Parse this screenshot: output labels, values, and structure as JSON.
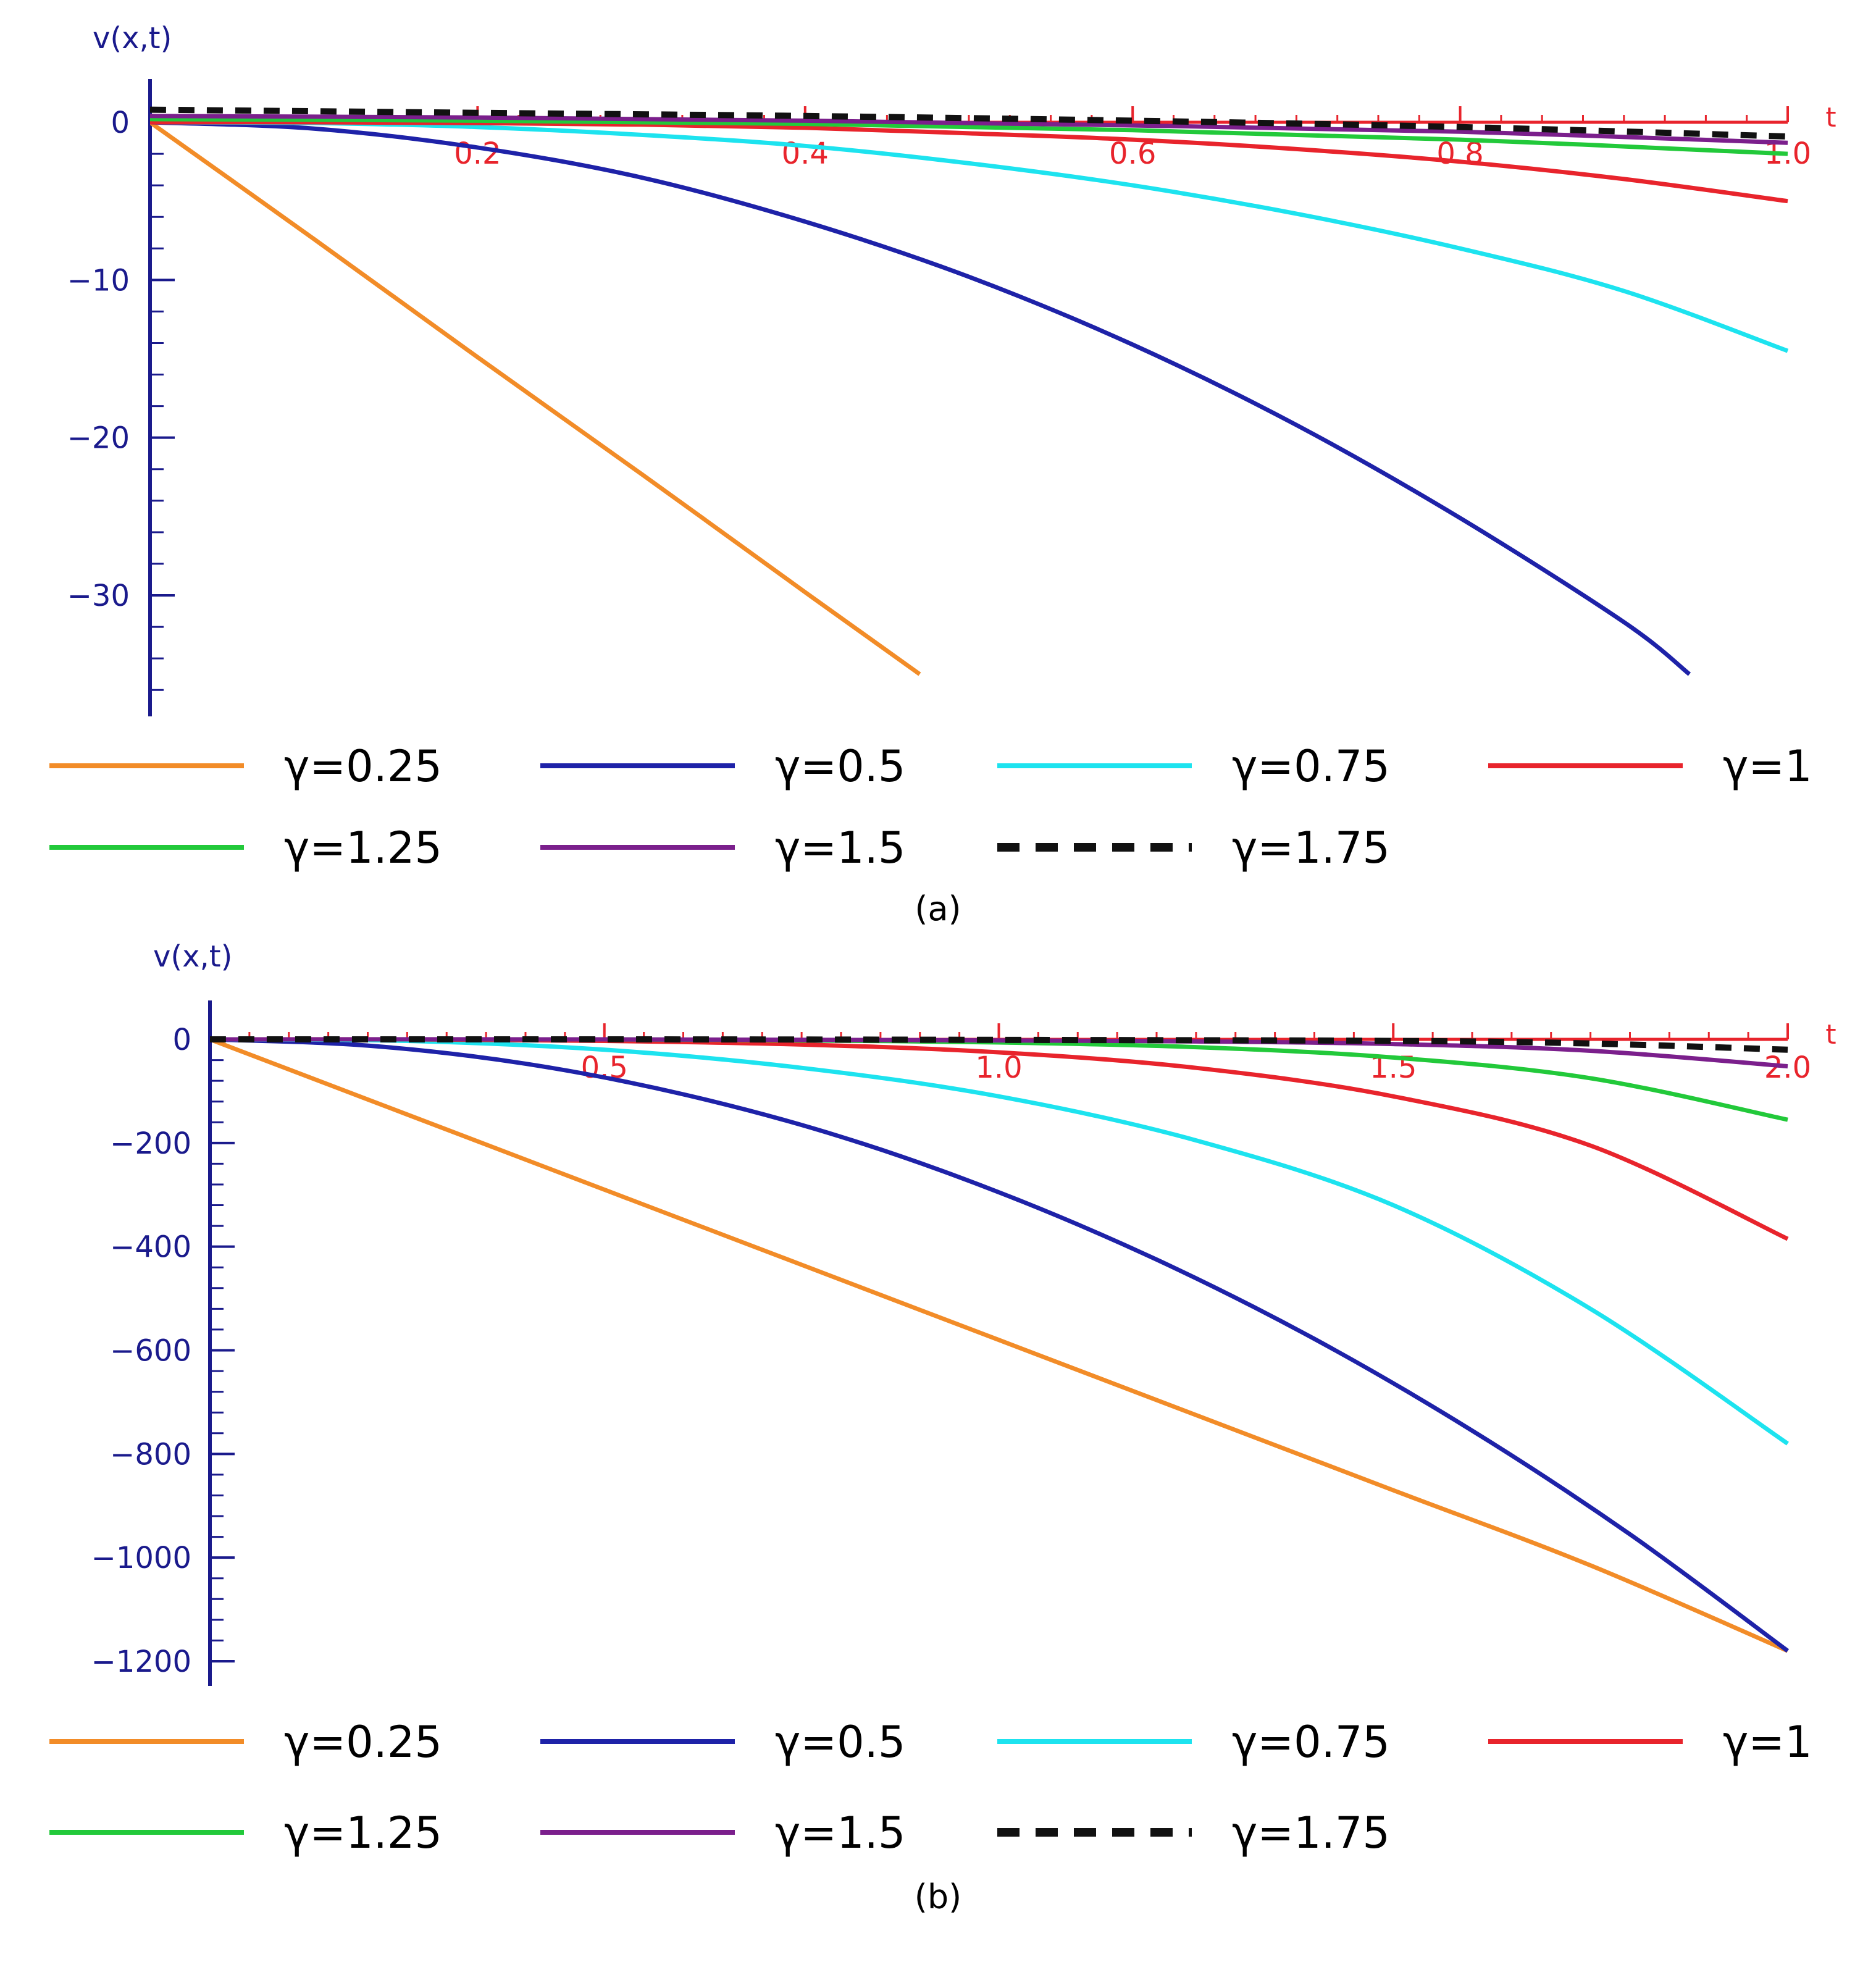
{
  "chart_data": [
    {
      "type": "line",
      "panel": "a",
      "caption": "(a)",
      "xlabel": "t",
      "ylabel": "v(x,t)",
      "xlim": [
        0,
        1.0
      ],
      "ylim": [
        -36,
        2
      ],
      "x_ticks": [
        {
          "v": 0.2,
          "label": "0.2"
        },
        {
          "v": 0.4,
          "label": "0.4"
        },
        {
          "v": 0.6,
          "label": "0.6"
        },
        {
          "v": 0.8,
          "label": "0.8"
        },
        {
          "v": 1.0,
          "label": "1.0"
        }
      ],
      "y_ticks": [
        {
          "v": 0,
          "label": "0"
        },
        {
          "v": -10,
          "label": "−10"
        },
        {
          "v": -20,
          "label": "−20"
        },
        {
          "v": -30,
          "label": "−30"
        }
      ],
      "y_minor_step": 2,
      "series": [
        {
          "name": "γ=0.25",
          "color": "#f28c28",
          "dash": false,
          "x": [
            0,
            0.1,
            0.2,
            0.3,
            0.4,
            0.47
          ],
          "y": [
            0,
            -7.4,
            -14.9,
            -22.3,
            -29.8,
            -35
          ]
        },
        {
          "name": "γ=0.5",
          "color": "#1e22a8",
          "dash": false,
          "x": [
            0,
            0.1,
            0.2,
            0.3,
            0.4,
            0.5,
            0.6,
            0.7,
            0.8,
            0.9,
            0.94
          ],
          "y": [
            0,
            -0.4,
            -1.6,
            -3.5,
            -6.3,
            -9.8,
            -14.1,
            -19.2,
            -25.1,
            -31.7,
            -35
          ]
        },
        {
          "name": "γ=0.75",
          "color": "#1de3ef",
          "dash": false,
          "x": [
            0,
            0.1,
            0.2,
            0.3,
            0.4,
            0.5,
            0.6,
            0.7,
            0.8,
            0.9,
            1.0
          ],
          "y": [
            0,
            -0.05,
            -0.3,
            -0.8,
            -1.5,
            -2.6,
            -4.0,
            -5.8,
            -8.0,
            -10.7,
            -14.5
          ]
        },
        {
          "name": "γ=1",
          "color": "#e8242c",
          "dash": false,
          "x": [
            0,
            0.1,
            0.2,
            0.3,
            0.4,
            0.5,
            0.6,
            0.7,
            0.8,
            0.9,
            1.0
          ],
          "y": [
            0,
            0,
            -0.05,
            -0.15,
            -0.35,
            -0.7,
            -1.1,
            -1.7,
            -2.5,
            -3.6,
            -5.0
          ]
        },
        {
          "name": "γ=1.25",
          "color": "#22c93a",
          "dash": false,
          "x": [
            0,
            0.2,
            0.4,
            0.6,
            0.8,
            1.0
          ],
          "y": [
            0.2,
            0.1,
            -0.1,
            -0.5,
            -1.1,
            -2.0
          ]
        },
        {
          "name": "γ=1.5",
          "color": "#7b1f8c",
          "dash": false,
          "x": [
            0,
            0.2,
            0.4,
            0.6,
            0.8,
            1.0
          ],
          "y": [
            0.4,
            0.3,
            0.1,
            -0.2,
            -0.6,
            -1.3
          ]
        },
        {
          "name": "γ=1.75",
          "color": "#111111",
          "dash": true,
          "x": [
            0,
            0.2,
            0.4,
            0.6,
            0.8,
            1.0
          ],
          "y": [
            0.8,
            0.6,
            0.4,
            0.1,
            -0.3,
            -0.9
          ]
        }
      ]
    },
    {
      "type": "line",
      "panel": "b",
      "caption": "(b)",
      "xlabel": "t",
      "ylabel": "v(x,t)",
      "xlim": [
        0,
        2.0
      ],
      "ylim": [
        -1220,
        20
      ],
      "x_ticks": [
        {
          "v": 0.5,
          "label": "0.5"
        },
        {
          "v": 1.0,
          "label": "1.0"
        },
        {
          "v": 1.5,
          "label": "1.5"
        },
        {
          "v": 2.0,
          "label": "2.0"
        }
      ],
      "y_ticks": [
        {
          "v": 0,
          "label": "0"
        },
        {
          "v": -200,
          "label": "−200"
        },
        {
          "v": -400,
          "label": "−400"
        },
        {
          "v": -600,
          "label": "−600"
        },
        {
          "v": -800,
          "label": "−800"
        },
        {
          "v": -1000,
          "label": "−1000"
        },
        {
          "v": -1200,
          "label": "−1200"
        }
      ],
      "y_minor_step": 40,
      "series": [
        {
          "name": "γ=0.25",
          "color": "#f28c28",
          "dash": false,
          "x": [
            0,
            0.25,
            0.5,
            0.75,
            1.0,
            1.25,
            1.5,
            1.75,
            2.0
          ],
          "y": [
            0,
            -145,
            -290,
            -435,
            -580,
            -725,
            -870,
            -1015,
            -1180
          ]
        },
        {
          "name": "γ=0.5",
          "color": "#1e22a8",
          "dash": false,
          "x": [
            0,
            0.2,
            0.4,
            0.6,
            0.8,
            1.0,
            1.2,
            1.4,
            1.6,
            1.8,
            2.0
          ],
          "y": [
            0,
            -12,
            -47,
            -106,
            -188,
            -295,
            -425,
            -578,
            -755,
            -955,
            -1180
          ]
        },
        {
          "name": "γ=0.75",
          "color": "#1de3ef",
          "dash": false,
          "x": [
            0,
            0.25,
            0.5,
            0.75,
            1.0,
            1.25,
            1.5,
            1.75,
            2.0
          ],
          "y": [
            0,
            -3,
            -20,
            -55,
            -110,
            -195,
            -320,
            -520,
            -780
          ]
        },
        {
          "name": "γ=1",
          "color": "#e8242c",
          "dash": false,
          "x": [
            0,
            0.25,
            0.5,
            0.75,
            1.0,
            1.25,
            1.5,
            1.75,
            2.0
          ],
          "y": [
            0,
            0,
            -3,
            -10,
            -25,
            -55,
            -110,
            -205,
            -385
          ]
        },
        {
          "name": "γ=1.25",
          "color": "#22c93a",
          "dash": false,
          "x": [
            0,
            0.25,
            0.5,
            0.75,
            1.0,
            1.25,
            1.5,
            1.75,
            2.0
          ],
          "y": [
            0,
            0,
            0,
            -2,
            -6,
            -15,
            -35,
            -75,
            -155
          ]
        },
        {
          "name": "γ=1.5",
          "color": "#7b1f8c",
          "dash": false,
          "x": [
            0,
            0.5,
            1.0,
            1.25,
            1.5,
            1.75,
            2.0
          ],
          "y": [
            0,
            0,
            -2,
            -4,
            -9,
            -22,
            -52
          ]
        },
        {
          "name": "γ=1.75",
          "color": "#111111",
          "dash": true,
          "x": [
            0,
            0.5,
            1.0,
            1.5,
            1.75,
            2.0
          ],
          "y": [
            0,
            0,
            -1,
            -3,
            -8,
            -20
          ]
        }
      ]
    }
  ]
}
